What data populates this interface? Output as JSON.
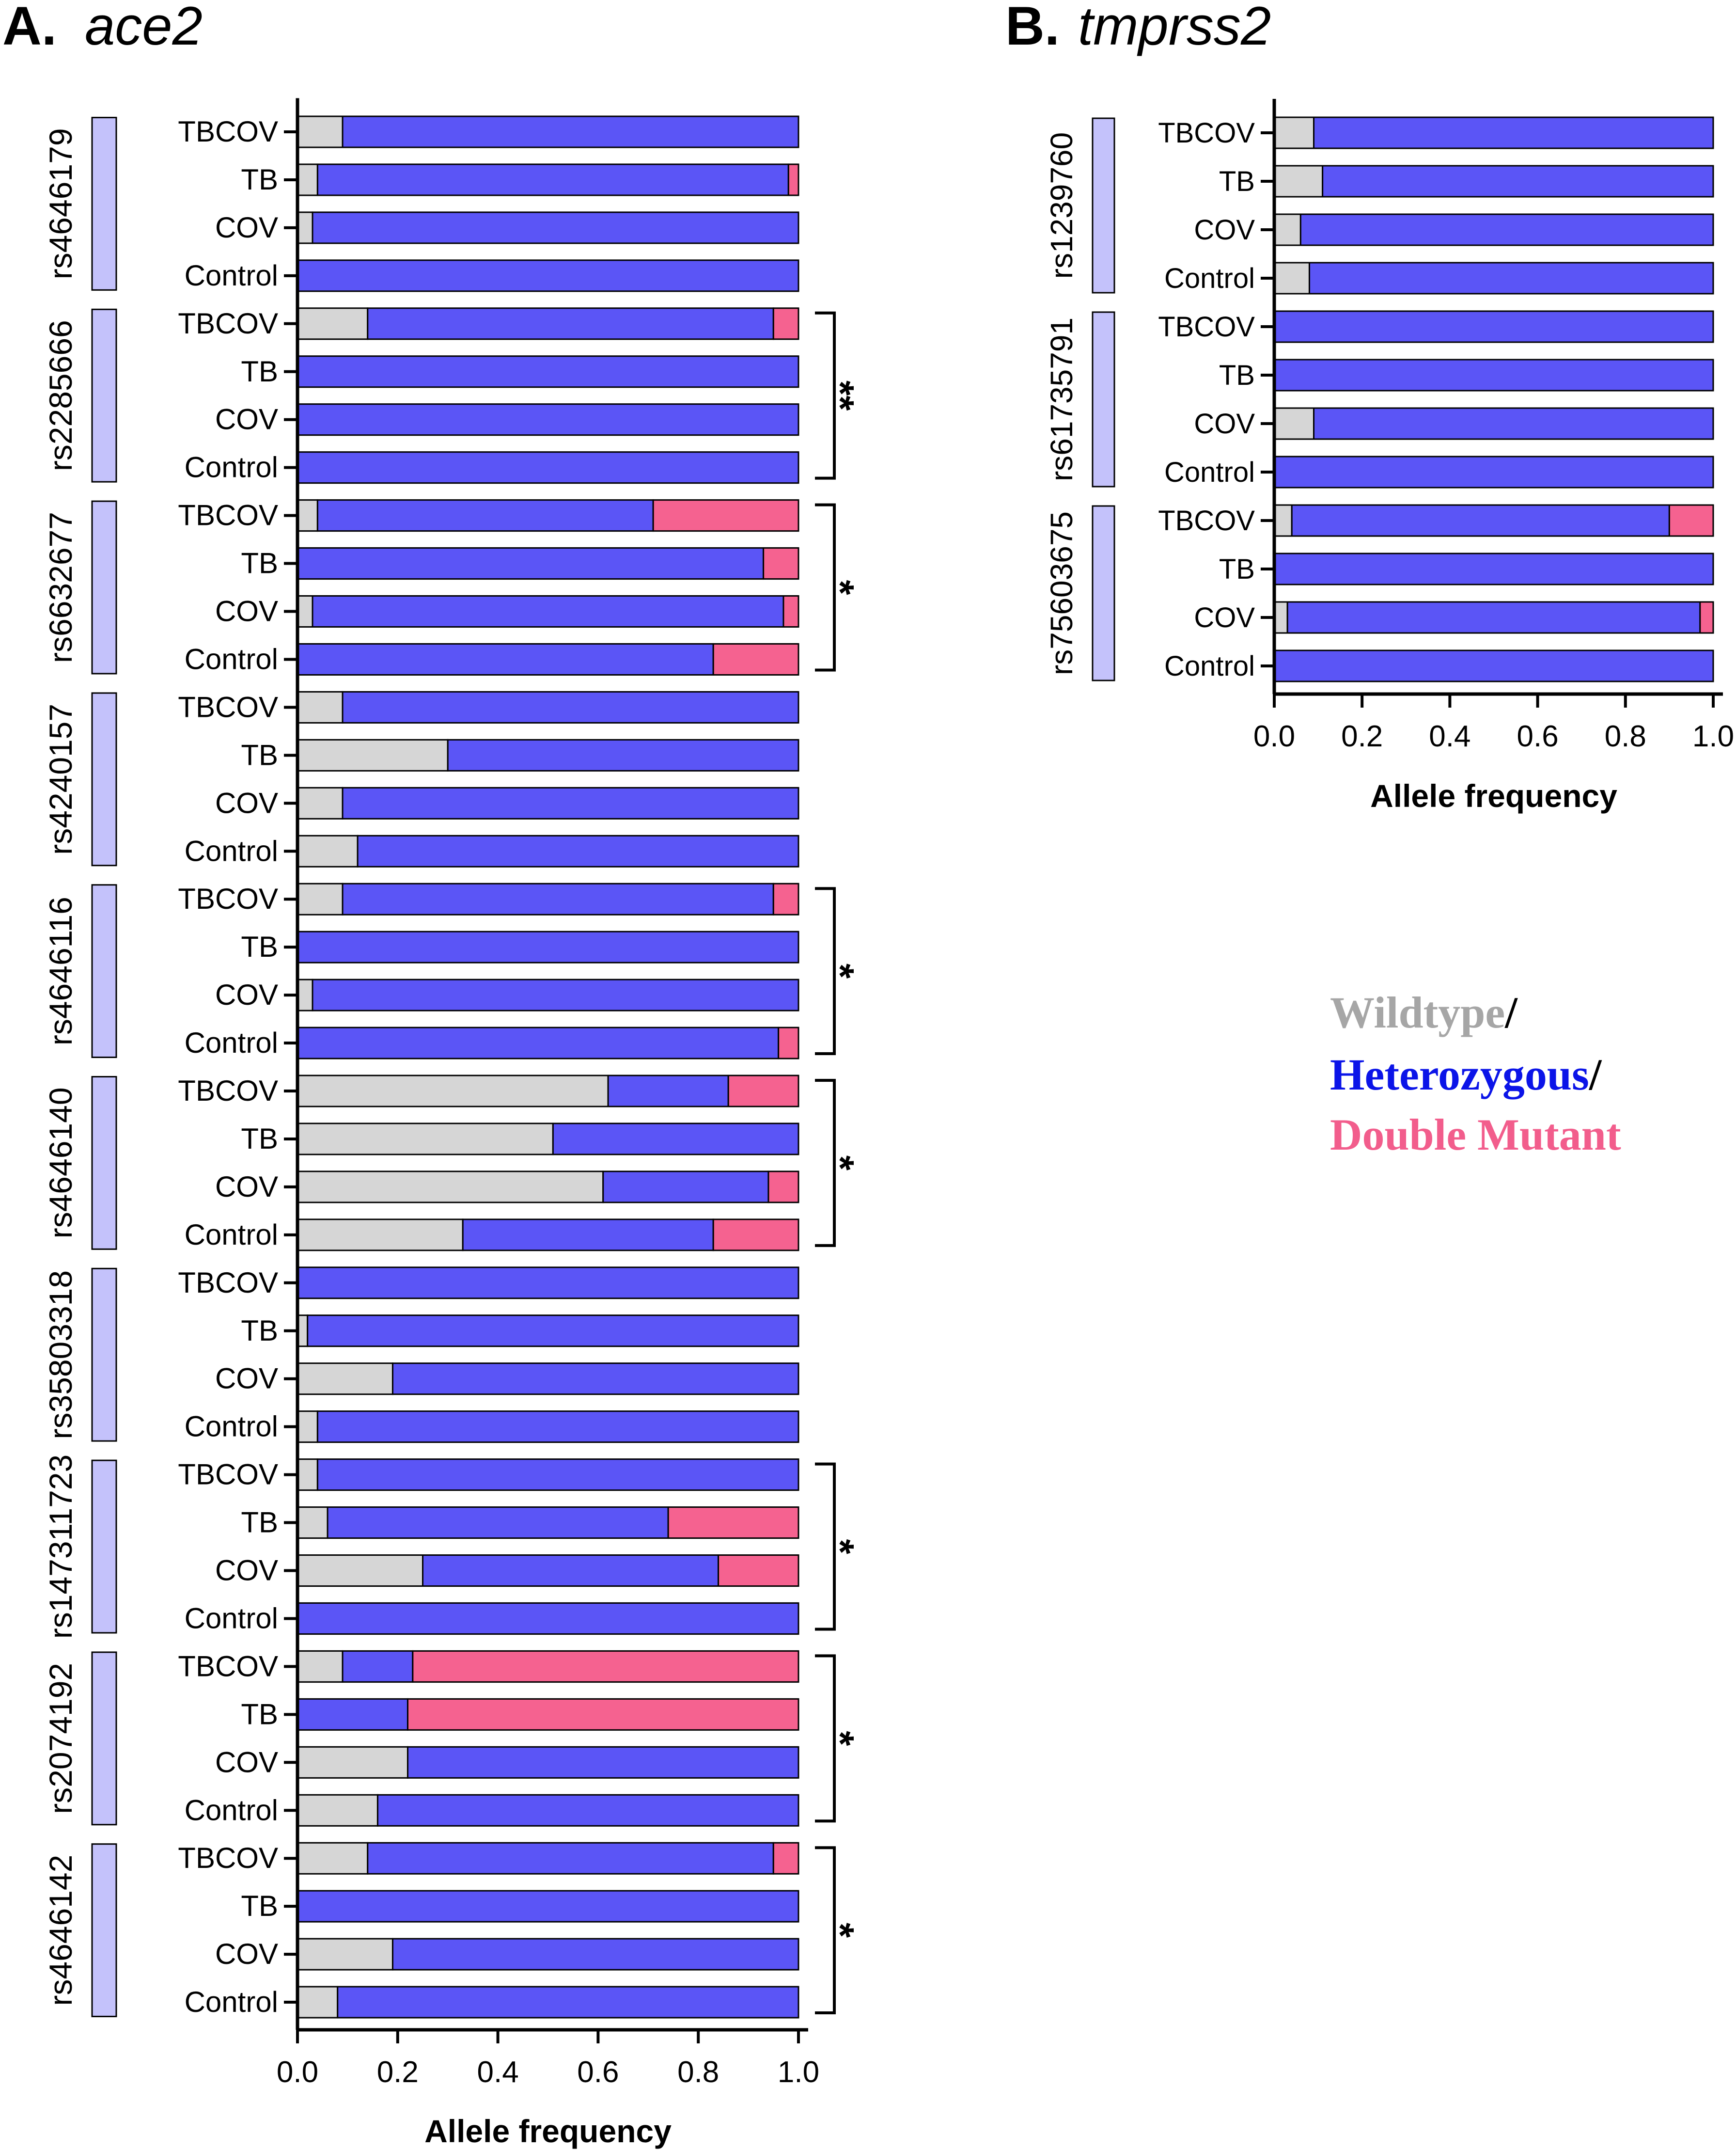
{
  "legend": {
    "items": [
      {
        "label": "Wildtype",
        "sep": "/",
        "color": "#a6a6a6"
      },
      {
        "label": "Heterozygous",
        "sep": "/",
        "color": "#0b14e8"
      },
      {
        "label": "Double Mutant",
        "sep": "",
        "color": "#f25d8c"
      }
    ]
  },
  "colors": {
    "wildtype": "#d6d6d6",
    "heterozygous": "#5b55f6",
    "double_mutant": "#f56290",
    "snp_box": "#c4c2fb"
  },
  "chart_data": [
    {
      "type": "bar",
      "orientation": "horizontal",
      "stacked": true,
      "panel_letter": "A.",
      "panel_gene": "ace2",
      "xlabel": "Allele frequency",
      "xlim": [
        0,
        1.0
      ],
      "ticks": [
        "0.0",
        "0.2",
        "0.4",
        "0.6",
        "0.8",
        "1.0"
      ],
      "series_names": [
        "Wildtype",
        "Heterozygous",
        "Double Mutant"
      ],
      "groups": [
        {
          "snp": "rs4646179",
          "sig": "",
          "rows": [
            {
              "label": "TBCOV",
              "values": [
                0.09,
                0.91,
                0.0
              ]
            },
            {
              "label": "TB",
              "values": [
                0.04,
                0.94,
                0.02
              ]
            },
            {
              "label": "COV",
              "values": [
                0.03,
                0.97,
                0.0
              ]
            },
            {
              "label": "Control",
              "values": [
                0.0,
                1.0,
                0.0
              ]
            }
          ]
        },
        {
          "snp": "rs2285666",
          "sig": "**",
          "rows": [
            {
              "label": "TBCOV",
              "values": [
                0.14,
                0.81,
                0.05
              ]
            },
            {
              "label": "TB",
              "values": [
                0.0,
                1.0,
                0.0
              ]
            },
            {
              "label": "COV",
              "values": [
                0.0,
                1.0,
                0.0
              ]
            },
            {
              "label": "Control",
              "values": [
                0.0,
                1.0,
                0.0
              ]
            }
          ]
        },
        {
          "snp": "rs6632677",
          "sig": "*",
          "rows": [
            {
              "label": "TBCOV",
              "values": [
                0.04,
                0.67,
                0.29
              ]
            },
            {
              "label": "TB",
              "values": [
                0.0,
                0.93,
                0.07
              ]
            },
            {
              "label": "COV",
              "values": [
                0.03,
                0.94,
                0.03
              ]
            },
            {
              "label": "Control",
              "values": [
                0.0,
                0.83,
                0.17
              ]
            }
          ]
        },
        {
          "snp": "rs4240157",
          "sig": "",
          "rows": [
            {
              "label": "TBCOV",
              "values": [
                0.09,
                0.91,
                0.0
              ]
            },
            {
              "label": "TB",
              "values": [
                0.3,
                0.7,
                0.0
              ]
            },
            {
              "label": "COV",
              "values": [
                0.09,
                0.91,
                0.0
              ]
            },
            {
              "label": "Control",
              "values": [
                0.12,
                0.88,
                0.0
              ]
            }
          ]
        },
        {
          "snp": "rs4646116",
          "sig": "*",
          "rows": [
            {
              "label": "TBCOV",
              "values": [
                0.09,
                0.86,
                0.05
              ]
            },
            {
              "label": "TB",
              "values": [
                0.0,
                1.0,
                0.0
              ]
            },
            {
              "label": "COV",
              "values": [
                0.03,
                0.97,
                0.0
              ]
            },
            {
              "label": "Control",
              "values": [
                0.0,
                0.96,
                0.04
              ]
            }
          ]
        },
        {
          "snp": "rs4646140",
          "sig": "*",
          "rows": [
            {
              "label": "TBCOV",
              "values": [
                0.62,
                0.24,
                0.14
              ]
            },
            {
              "label": "TB",
              "values": [
                0.51,
                0.49,
                0.0
              ]
            },
            {
              "label": "COV",
              "values": [
                0.61,
                0.33,
                0.06
              ]
            },
            {
              "label": "Control",
              "values": [
                0.33,
                0.5,
                0.17
              ]
            }
          ]
        },
        {
          "snp": "rs35803318",
          "sig": "",
          "rows": [
            {
              "label": "TBCOV",
              "values": [
                0.0,
                1.0,
                0.0
              ]
            },
            {
              "label": "TB",
              "values": [
                0.02,
                0.98,
                0.0
              ]
            },
            {
              "label": "COV",
              "values": [
                0.19,
                0.81,
                0.0
              ]
            },
            {
              "label": "Control",
              "values": [
                0.04,
                0.96,
                0.0
              ]
            }
          ]
        },
        {
          "snp": "rs147311723",
          "sig": "*",
          "rows": [
            {
              "label": "TBCOV",
              "values": [
                0.04,
                0.96,
                0.0
              ]
            },
            {
              "label": "TB",
              "values": [
                0.06,
                0.68,
                0.26
              ]
            },
            {
              "label": "COV",
              "values": [
                0.25,
                0.59,
                0.16
              ]
            },
            {
              "label": "Control",
              "values": [
                0.0,
                1.0,
                0.0
              ]
            }
          ]
        },
        {
          "snp": "rs2074192",
          "sig": "*",
          "rows": [
            {
              "label": "TBCOV",
              "values": [
                0.09,
                0.14,
                0.77
              ]
            },
            {
              "label": "TB",
              "values": [
                0.0,
                0.22,
                0.78
              ]
            },
            {
              "label": "COV",
              "values": [
                0.22,
                0.78,
                0.0
              ]
            },
            {
              "label": "Control",
              "values": [
                0.16,
                0.84,
                0.0
              ]
            }
          ]
        },
        {
          "snp": "rs4646142",
          "sig": "*",
          "rows": [
            {
              "label": "TBCOV",
              "values": [
                0.14,
                0.81,
                0.05
              ]
            },
            {
              "label": "TB",
              "values": [
                0.0,
                1.0,
                0.0
              ]
            },
            {
              "label": "COV",
              "values": [
                0.19,
                0.81,
                0.0
              ]
            },
            {
              "label": "Control",
              "values": [
                0.08,
                0.92,
                0.0
              ]
            }
          ]
        }
      ]
    },
    {
      "type": "bar",
      "orientation": "horizontal",
      "stacked": true,
      "panel_letter": "B.",
      "panel_gene": "tmprss2",
      "xlabel": "Allele frequency",
      "xlim": [
        0,
        1.0
      ],
      "ticks": [
        "0.0",
        "0.2",
        "0.4",
        "0.6",
        "0.8",
        "1.0"
      ],
      "series_names": [
        "Wildtype",
        "Heterozygous",
        "Double Mutant"
      ],
      "groups": [
        {
          "snp": "rs1239760",
          "sig": "",
          "rows": [
            {
              "label": "TBCOV",
              "values": [
                0.09,
                0.91,
                0.0
              ]
            },
            {
              "label": "TB",
              "values": [
                0.11,
                0.89,
                0.0
              ]
            },
            {
              "label": "COV",
              "values": [
                0.06,
                0.94,
                0.0
              ]
            },
            {
              "label": "Control",
              "values": [
                0.08,
                0.92,
                0.0
              ]
            }
          ]
        },
        {
          "snp": "rs61735791",
          "sig": "",
          "rows": [
            {
              "label": "TBCOV",
              "values": [
                0.0,
                1.0,
                0.0
              ]
            },
            {
              "label": "TB",
              "values": [
                0.0,
                1.0,
                0.0
              ]
            },
            {
              "label": "COV",
              "values": [
                0.09,
                0.91,
                0.0
              ]
            },
            {
              "label": "Control",
              "values": [
                0.0,
                1.0,
                0.0
              ]
            }
          ]
        },
        {
          "snp": "rs75603675",
          "sig": "",
          "rows": [
            {
              "label": "TBCOV",
              "values": [
                0.04,
                0.86,
                0.1
              ]
            },
            {
              "label": "TB",
              "values": [
                0.0,
                1.0,
                0.0
              ]
            },
            {
              "label": "COV",
              "values": [
                0.03,
                0.94,
                0.03
              ]
            },
            {
              "label": "Control",
              "values": [
                0.0,
                1.0,
                0.0
              ]
            }
          ]
        }
      ]
    }
  ]
}
